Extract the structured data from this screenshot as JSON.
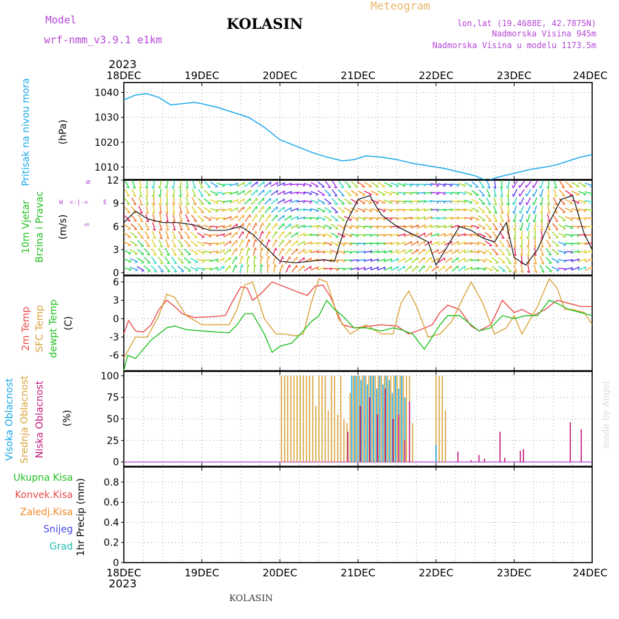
{
  "header": {
    "model_label": "Model",
    "model_name": "wrf-nmm_v3.9.1 e1km",
    "station": "KOLASIN",
    "meteogram_label": "Meteogram",
    "lonlat": "lon,lat (19.4688E, 42.7875N)",
    "elevation": "Nadmorska Visina 945m",
    "model_elevation": "Nadmorska Visina u modelu 1173.5m",
    "year": "2023",
    "footer_station": "KOLASIN",
    "credit": "made by Angel"
  },
  "colors": {
    "pressure": "#1aa7e8",
    "wind_label": "#22c022",
    "temp2m": "#e84a4a",
    "sfc": "#d9a23a",
    "dewpt": "#22c022",
    "cloud_high": "#1aa7e8",
    "cloud_mid": "#d9a23a",
    "cloud_low": "#c0187c",
    "purple": "#b548d6",
    "meteogram": "#e6b86a"
  },
  "x_axis": {
    "labels": [
      "18DEC",
      "19DEC",
      "20DEC",
      "21DEC",
      "22DEC",
      "23DEC",
      "24DEC"
    ]
  },
  "chart_data": [
    {
      "type": "line",
      "title": "Pritisak na nivou mora",
      "ylabel": "(hPa)",
      "yticks": [
        1010,
        1020,
        1030,
        1040
      ],
      "ylim": [
        1005,
        1044
      ],
      "grid": true,
      "x_unit": "days from 18DEC 00",
      "series": [
        {
          "x": [
            0,
            0.15,
            0.3,
            0.45,
            0.6,
            0.75,
            0.9,
            1.0,
            1.2,
            1.4,
            1.6,
            1.8,
            2.0,
            2.2,
            2.4,
            2.6,
            2.8,
            2.95,
            3.1,
            3.3,
            3.5,
            3.7,
            3.9,
            4.1,
            4.3,
            4.5,
            4.65,
            4.8,
            5.0,
            5.2,
            5.4,
            5.55,
            5.7,
            5.85,
            6.0
          ],
          "values": [
            1037,
            1039,
            1039.5,
            1038,
            1035,
            1035.5,
            1036,
            1035.5,
            1034,
            1032,
            1030,
            1026,
            1021,
            1018.5,
            1016,
            1014,
            1012.5,
            1013,
            1014.5,
            1014,
            1013,
            1011.5,
            1010.5,
            1009.5,
            1008,
            1006.5,
            1004.5,
            1006,
            1007.5,
            1009,
            1010,
            1011,
            1012.5,
            1014,
            1015
          ]
        }
      ]
    },
    {
      "type": "line",
      "title": "10m Vjetar Brzina i Pravac",
      "ylabel": "(m/s)",
      "yticks": [
        0,
        3,
        6,
        9,
        12
      ],
      "ylim": [
        -0.3,
        12
      ],
      "grid": true,
      "x_unit": "days from 18DEC 00",
      "compass": {
        "w": "W",
        "e": "E",
        "n": "N",
        "s": "S"
      },
      "series": [
        {
          "name": "speed",
          "x": [
            0,
            0.15,
            0.3,
            0.5,
            0.7,
            0.9,
            1.1,
            1.3,
            1.5,
            1.65,
            1.8,
            2.0,
            2.2,
            2.4,
            2.55,
            2.7,
            2.85,
            3.0,
            3.15,
            3.3,
            3.5,
            3.7,
            3.9,
            4.0,
            4.15,
            4.3,
            4.45,
            4.6,
            4.75,
            4.9,
            5.0,
            5.15,
            5.3,
            5.45,
            5.6,
            5.75,
            5.9,
            6.0
          ],
          "values": [
            6.5,
            8,
            7,
            6.5,
            6.5,
            6.2,
            5.5,
            5.5,
            6,
            5,
            3.5,
            1.5,
            1.3,
            1.5,
            1.7,
            1.5,
            6.5,
            9.5,
            10,
            7.5,
            6,
            5,
            4,
            1,
            3.5,
            6,
            5.5,
            4.5,
            4,
            6.5,
            2,
            1,
            3,
            6.5,
            9.5,
            10,
            5,
            3
          ]
        }
      ]
    },
    {
      "type": "line",
      "title": "2m Temp / SFC Temp / dewpt Temp",
      "ylabel": "(C)",
      "yticks": [
        -6,
        -3,
        0,
        3,
        6
      ],
      "ylim": [
        -8.5,
        7
      ],
      "grid": true,
      "x_unit": "days from 18DEC 00",
      "series": [
        {
          "name": "2m Temp",
          "x": [
            0,
            0.06,
            0.15,
            0.25,
            0.35,
            0.45,
            0.55,
            0.65,
            0.75,
            0.9,
            1.1,
            1.3,
            1.4,
            1.5,
            1.58,
            1.65,
            1.75,
            1.9,
            2.0,
            2.2,
            2.35,
            2.45,
            2.55,
            2.65,
            2.8,
            2.95,
            3.1,
            3.3,
            3.5,
            3.65,
            3.8,
            3.95,
            4.05,
            4.15,
            4.3,
            4.45,
            4.55,
            4.7,
            4.85,
            5.0,
            5.1,
            5.25,
            5.4,
            5.55,
            5.7,
            5.85,
            6.0
          ],
          "values": [
            -2.5,
            -0.3,
            -2,
            -2.2,
            -1,
            1.5,
            3,
            2,
            0.8,
            0.2,
            0.3,
            0.5,
            3,
            5.2,
            5,
            3,
            4,
            6,
            5.5,
            4.5,
            3.8,
            5.3,
            5.5,
            3.5,
            -1,
            -1.5,
            -1.3,
            -1,
            -1.2,
            -2.5,
            -1.8,
            -1,
            1,
            2.2,
            1.5,
            -1.2,
            -2,
            -1,
            3,
            1,
            1.5,
            0.5,
            1.5,
            3,
            2.5,
            2,
            2
          ]
        },
        {
          "name": "SFC Temp",
          "x": [
            0,
            0.15,
            0.3,
            0.45,
            0.55,
            0.65,
            0.8,
            1.0,
            1.2,
            1.35,
            1.45,
            1.55,
            1.65,
            1.8,
            1.95,
            2.05,
            2.2,
            2.3,
            2.4,
            2.5,
            2.6,
            2.75,
            2.9,
            3.1,
            3.3,
            3.45,
            3.55,
            3.65,
            3.75,
            3.9,
            4.05,
            4.2,
            4.35,
            4.45,
            4.6,
            4.75,
            4.9,
            5.0,
            5.1,
            5.3,
            5.45,
            5.55,
            5.65,
            5.75,
            5.9,
            6.0
          ],
          "values": [
            -6.5,
            -3,
            -3,
            0.5,
            4,
            3.5,
            0.5,
            -1,
            -1,
            -1,
            1.5,
            5.5,
            6,
            0,
            -2.5,
            -2.5,
            -2.8,
            -2.5,
            2.5,
            6.5,
            6,
            0,
            -2.5,
            -1,
            -2.5,
            -2.5,
            2.5,
            4.5,
            2,
            -3,
            -2.5,
            -0.5,
            3.5,
            6,
            2.5,
            -2.5,
            -1.5,
            0.5,
            -2.5,
            2,
            6.5,
            5,
            1.5,
            1.5,
            1,
            -1
          ]
        },
        {
          "name": "dewpt Temp",
          "x": [
            0,
            0.05,
            0.15,
            0.25,
            0.35,
            0.45,
            0.55,
            0.65,
            0.8,
            1.0,
            1.2,
            1.35,
            1.45,
            1.55,
            1.65,
            1.8,
            1.9,
            2.0,
            2.15,
            2.3,
            2.4,
            2.5,
            2.6,
            2.7,
            2.8,
            2.95,
            3.1,
            3.3,
            3.45,
            3.55,
            3.7,
            3.85,
            3.95,
            4.05,
            4.15,
            4.3,
            4.45,
            4.55,
            4.7,
            4.85,
            5.0,
            5.15,
            5.3,
            5.45,
            5.55,
            5.7,
            5.85,
            6.0
          ],
          "values": [
            -8.5,
            -6,
            -6.5,
            -5,
            -3.5,
            -2.5,
            -1.5,
            -1.2,
            -1.8,
            -2,
            -2.2,
            -2.3,
            -1,
            0.8,
            0.8,
            -2.5,
            -5.5,
            -4.5,
            -4,
            -2,
            -0.5,
            0.5,
            3,
            1.5,
            0.5,
            -1.5,
            -1.5,
            -2,
            -1.5,
            -1.8,
            -2.5,
            -5,
            -3,
            -1,
            0.5,
            0.5,
            -1,
            -2,
            -1.5,
            0.5,
            0,
            0.5,
            0.5,
            3,
            2.5,
            1.5,
            1,
            0.5
          ]
        }
      ]
    },
    {
      "type": "bar",
      "title": "Visoka Oblacnost / Srednja Oblacnost / Niska Oblacnost",
      "ylabel": "(%)",
      "yticks": [
        0,
        25,
        50,
        75,
        100
      ],
      "ylim": [
        -5,
        105
      ],
      "grid": true,
      "x_unit": "days from 18DEC 00",
      "series": [
        {
          "name": "Srednja Oblacnost",
          "x": [
            2.02,
            2.06,
            2.1,
            2.14,
            2.18,
            2.22,
            2.26,
            2.3,
            2.34,
            2.38,
            2.42,
            2.46,
            2.5,
            2.54,
            2.58,
            2.62,
            2.66,
            2.7,
            2.74,
            2.78,
            2.82,
            2.86,
            2.9,
            2.94,
            2.98,
            3.02,
            3.06,
            3.1,
            3.14,
            3.18,
            3.22,
            3.26,
            3.3,
            3.34,
            3.38,
            3.42,
            3.46,
            3.5,
            3.54,
            3.58,
            3.62,
            3.66,
            3.7,
            4.0,
            4.04,
            4.08,
            4.12
          ],
          "values": [
            100,
            100,
            100,
            100,
            100,
            100,
            100,
            100,
            100,
            100,
            100,
            65,
            100,
            100,
            100,
            60,
            100,
            100,
            55,
            100,
            50,
            45,
            80,
            100,
            100,
            100,
            100,
            100,
            100,
            100,
            100,
            100,
            100,
            100,
            100,
            100,
            100,
            100,
            100,
            100,
            100,
            100,
            45,
            100,
            100,
            100,
            60
          ]
        },
        {
          "name": "Visoka Oblacnost",
          "x": [
            2.92,
            2.96,
            3.0,
            3.04,
            3.08,
            3.12,
            3.16,
            3.2,
            3.24,
            3.28,
            3.32,
            3.36,
            3.4,
            3.44,
            3.48,
            3.52,
            3.56,
            3.6,
            4.0
          ],
          "values": [
            100,
            100,
            100,
            95,
            100,
            90,
            100,
            100,
            85,
            100,
            90,
            100,
            95,
            80,
            100,
            85,
            100,
            75,
            20
          ]
        },
        {
          "name": "Niska Oblacnost",
          "x": [
            2.87,
            3.03,
            3.15,
            3.25,
            3.35,
            3.45,
            3.52,
            3.6,
            3.66,
            4.28,
            4.45,
            4.55,
            4.62,
            4.82,
            4.88,
            5.08,
            5.12,
            5.72,
            5.86
          ],
          "values": [
            35,
            65,
            75,
            55,
            85,
            50,
            55,
            25,
            70,
            12,
            2,
            8,
            4,
            35,
            5,
            13,
            15,
            46,
            38
          ]
        }
      ]
    },
    {
      "type": "line",
      "title": "1hr Precip",
      "ylabel": "1hr Precip (mm)",
      "yticks": [
        0,
        0.2,
        0.4,
        0.6,
        0.8
      ],
      "ylim": [
        0,
        0.95
      ],
      "grid": true,
      "x_unit": "days from 18DEC 00",
      "legend": [
        "Ukupna Kisa",
        "Konvek.Kisa",
        "Zaledj.Kisa",
        "Snijeg",
        "Grad"
      ],
      "legend_colors": [
        "#22c022",
        "#e84a4a",
        "#f08a2a",
        "#4a4ae8",
        "#22c0b0"
      ],
      "series": []
    }
  ]
}
